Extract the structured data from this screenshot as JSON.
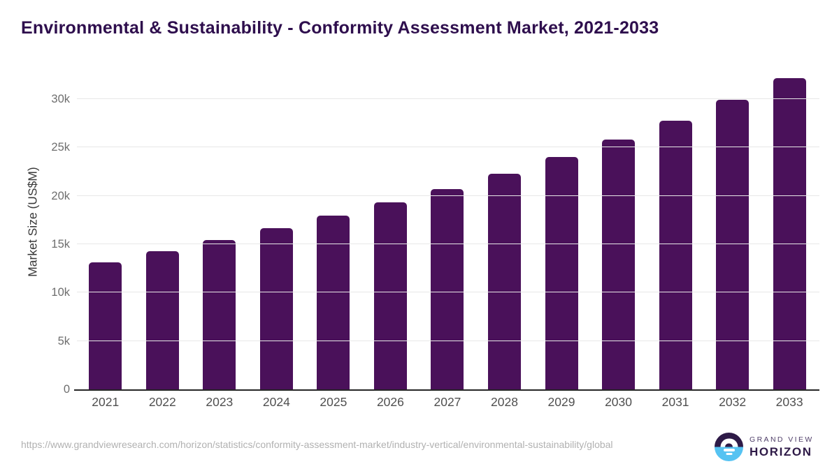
{
  "title": "Environmental & Sustainability - Conformity Assessment Market, 2021-2033",
  "source": {
    "url": "https://www.grandviewresearch.com/horizon/statistics/conformity-assessment-market/industry-vertical/environmental-sustainability/global"
  },
  "logo": {
    "line1": "GRAND VIEW",
    "line2": "HORIZON",
    "icon": "sunrise-horizon-circle-icon"
  },
  "colors": {
    "bar": "#4a115a",
    "title": "#2e0e4d",
    "grid": "#e7e7e7",
    "axis": "#262626",
    "tick": "#6e6e6e",
    "year": "#4f4f4f",
    "ylab": "#3a3a3a",
    "url": "#b1b1b1",
    "logo_purple": "#2e1a47",
    "logo_blue": "#56c3f2",
    "logo_gray": "#4e3d68"
  },
  "chart_data": {
    "type": "bar",
    "title": "Environmental & Sustainability - Conformity Assessment Market, 2021-2033",
    "categories": [
      "2021",
      "2022",
      "2023",
      "2024",
      "2025",
      "2026",
      "2027",
      "2028",
      "2029",
      "2030",
      "2031",
      "2032",
      "2033"
    ],
    "values": [
      13150,
      14250,
      15400,
      16650,
      17950,
      19300,
      20700,
      22250,
      24000,
      25800,
      27750,
      29900,
      32200
    ],
    "xlabel": "",
    "ylabel": "Market Size (US$M)",
    "ylim": [
      0,
      32500
    ],
    "ytick_values": [
      0,
      5000,
      10000,
      15000,
      20000,
      25000,
      30000
    ],
    "ytick_labels": [
      "0",
      "5k",
      "10k",
      "15k",
      "20k",
      "25k",
      "30k"
    ],
    "grid": true,
    "legend": false,
    "bar_color": "#4a115a"
  }
}
